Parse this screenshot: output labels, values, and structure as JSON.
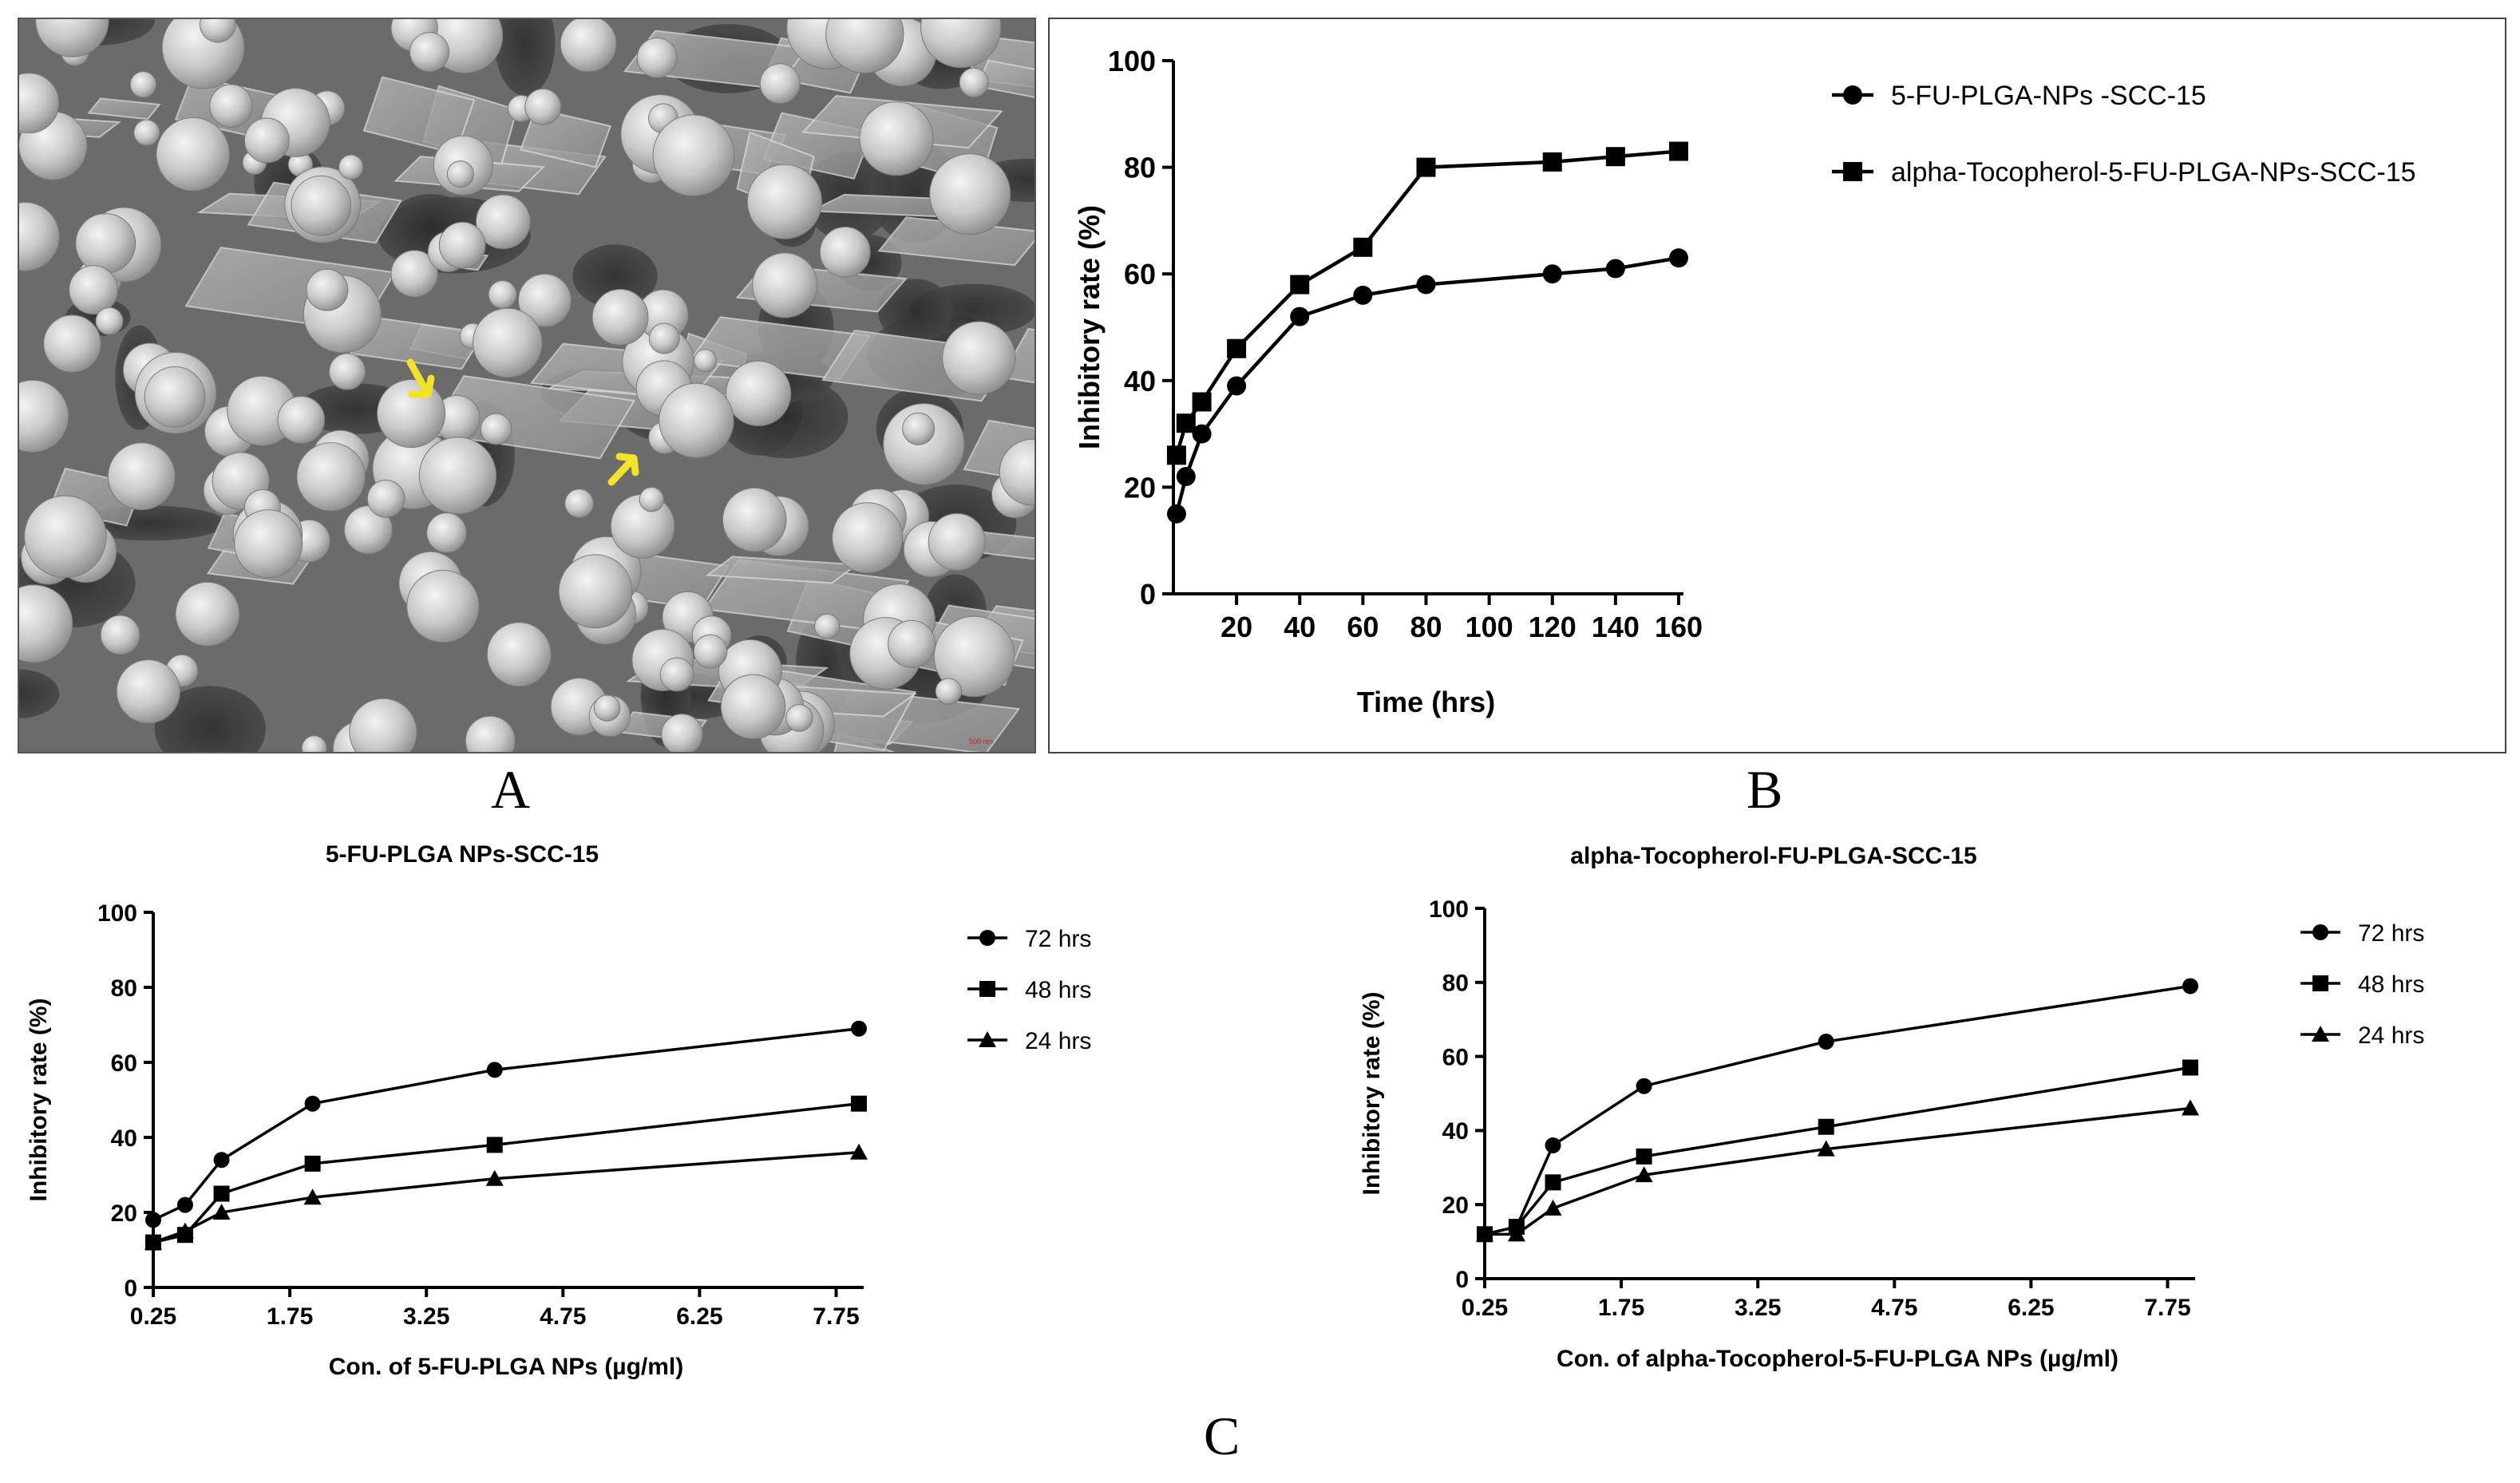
{
  "panels": {
    "a": "A",
    "b": "B",
    "c": "C"
  },
  "sem": {
    "scale_bar": "500 nm",
    "arrow_color": "#f2e22a"
  },
  "chart_data": [
    {
      "id": "B",
      "type": "line",
      "title": "",
      "xlabel": "Time (hrs)",
      "ylabel": "Inhibitory rate (%)",
      "x_ticks": [
        20,
        40,
        60,
        80,
        100,
        120,
        140,
        160
      ],
      "y_ticks": [
        0,
        20,
        40,
        60,
        80,
        100
      ],
      "xlim": [
        0,
        160
      ],
      "ylim": [
        0,
        100
      ],
      "legend_position": "top-right",
      "series": [
        {
          "name": "5-FU-PLGA-NPs -SCC-15",
          "marker": "circle",
          "x": [
            1,
            4,
            9,
            20,
            40,
            60,
            80,
            120,
            140,
            160
          ],
          "y": [
            15,
            22,
            30,
            39,
            52,
            56,
            58,
            60,
            61,
            63
          ]
        },
        {
          "name": "alpha-Tocopherol-5-FU-PLGA-NPs-SCC-15",
          "marker": "square",
          "x": [
            1,
            4,
            9,
            20,
            40,
            60,
            80,
            120,
            140,
            160
          ],
          "y": [
            26,
            32,
            36,
            46,
            58,
            65,
            80,
            81,
            82,
            83
          ]
        }
      ]
    },
    {
      "id": "C1",
      "type": "line",
      "title": "5-FU-PLGA NPs-SCC-15",
      "xlabel": "Con. of 5-FU-PLGA NPs (µg/ml)",
      "ylabel": "Inhibitory rate (%)",
      "x_ticks": [
        "0.25",
        "1.75",
        "3.25",
        "4.75",
        "6.25",
        "7.75"
      ],
      "y_ticks": [
        0,
        20,
        40,
        60,
        80,
        100
      ],
      "xlim": [
        0.25,
        8
      ],
      "ylim": [
        0,
        100
      ],
      "legend_position": "right",
      "series": [
        {
          "name": "72 hrs",
          "marker": "circle",
          "x": [
            0.25,
            0.6,
            1,
            2,
            4,
            8
          ],
          "y": [
            18,
            22,
            34,
            49,
            58,
            69
          ]
        },
        {
          "name": "48 hrs",
          "marker": "square",
          "x": [
            0.25,
            0.6,
            1,
            2,
            4,
            8
          ],
          "y": [
            12,
            14,
            25,
            33,
            38,
            49
          ]
        },
        {
          "name": "24 hrs",
          "marker": "triangle",
          "x": [
            0.25,
            0.6,
            1,
            2,
            4,
            8
          ],
          "y": [
            12,
            15,
            20,
            24,
            29,
            36
          ]
        }
      ]
    },
    {
      "id": "C2",
      "type": "line",
      "title": "alpha-Tocopherol-FU-PLGA-SCC-15",
      "xlabel": "Con. of alpha-Tocopherol-5-FU-PLGA NPs (µg/ml)",
      "ylabel": "Inhibitory rate (%)",
      "x_ticks": [
        "0.25",
        "1.75",
        "3.25",
        "4.75",
        "6.25",
        "7.75"
      ],
      "y_ticks": [
        0,
        20,
        40,
        60,
        80,
        100
      ],
      "xlim": [
        0.25,
        8
      ],
      "ylim": [
        0,
        100
      ],
      "legend_position": "right",
      "series": [
        {
          "name": "72 hrs",
          "marker": "circle",
          "x": [
            0.25,
            0.6,
            1,
            2,
            4,
            8
          ],
          "y": [
            12,
            14,
            36,
            52,
            64,
            79
          ]
        },
        {
          "name": "48 hrs",
          "marker": "square",
          "x": [
            0.25,
            0.6,
            1,
            2,
            4,
            8
          ],
          "y": [
            12,
            14,
            26,
            33,
            41,
            57
          ]
        },
        {
          "name": "24 hrs",
          "marker": "triangle",
          "x": [
            0.25,
            0.6,
            1,
            2,
            4,
            8
          ],
          "y": [
            12,
            12,
            19,
            28,
            35,
            46
          ]
        }
      ]
    }
  ]
}
